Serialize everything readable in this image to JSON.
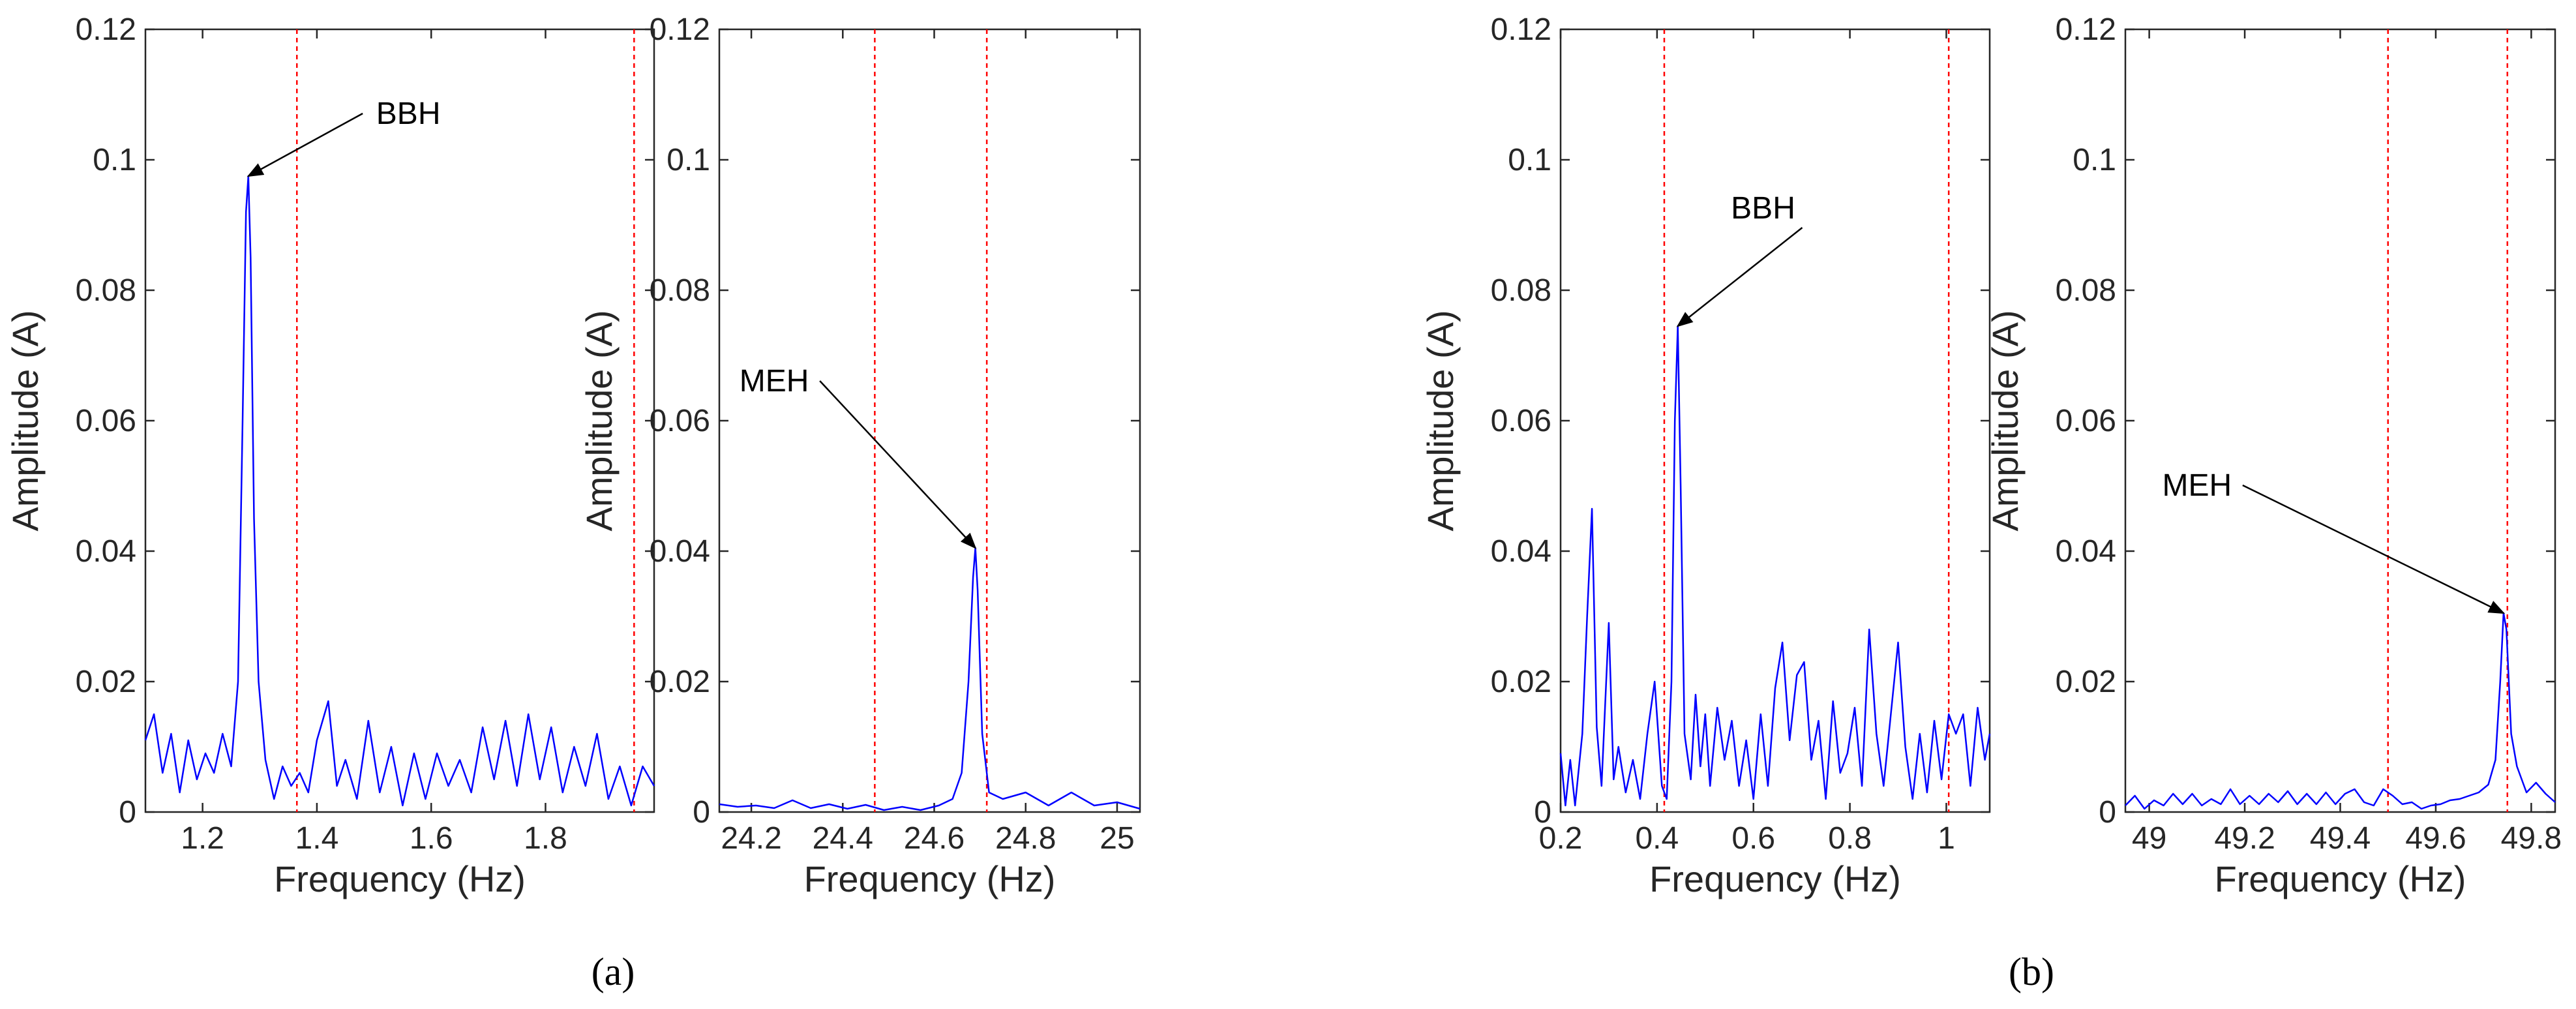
{
  "colors": {
    "signal": "#0000ff",
    "marker": "#ff0000",
    "axis": "#262626"
  },
  "subfigures": [
    {
      "label": "(a)"
    },
    {
      "label": "(b)"
    }
  ],
  "chart_data": [
    {
      "type": "line",
      "panel": "a-left",
      "xlabel": "Frequency (Hz)",
      "ylabel": "Amplitude (A)",
      "xlim": [
        1.1,
        1.99
      ],
      "ylim": [
        0,
        0.12
      ],
      "xticks": [
        1.2,
        1.4,
        1.6,
        1.8
      ],
      "xtick_labels": [
        "1.2",
        "1.4",
        "1.6",
        "1.8"
      ],
      "yticks": [
        0,
        0.02,
        0.04,
        0.06,
        0.08,
        0.1,
        0.12
      ],
      "ytick_labels": [
        "0",
        "0.02",
        "0.04",
        "0.06",
        "0.08",
        "0.1",
        "0.12"
      ],
      "vlines": [
        1.365,
        1.955
      ],
      "annotations": [
        {
          "text": "BBH",
          "x": 1.28,
          "y": 0.0975,
          "text_x": 1.56,
          "text_y": 0.1055
        }
      ],
      "x": [
        1.1,
        1.115,
        1.13,
        1.145,
        1.16,
        1.175,
        1.19,
        1.205,
        1.22,
        1.235,
        1.25,
        1.262,
        1.27,
        1.276,
        1.28,
        1.284,
        1.29,
        1.298,
        1.31,
        1.325,
        1.34,
        1.355,
        1.37,
        1.385,
        1.4,
        1.42,
        1.435,
        1.45,
        1.47,
        1.49,
        1.51,
        1.53,
        1.55,
        1.57,
        1.59,
        1.61,
        1.63,
        1.65,
        1.67,
        1.69,
        1.71,
        1.73,
        1.75,
        1.77,
        1.79,
        1.81,
        1.83,
        1.85,
        1.87,
        1.89,
        1.91,
        1.93,
        1.95,
        1.97,
        1.99
      ],
      "y": [
        0.011,
        0.015,
        0.006,
        0.012,
        0.003,
        0.011,
        0.005,
        0.009,
        0.006,
        0.012,
        0.007,
        0.02,
        0.06,
        0.092,
        0.0975,
        0.085,
        0.045,
        0.02,
        0.008,
        0.002,
        0.007,
        0.004,
        0.006,
        0.003,
        0.011,
        0.017,
        0.004,
        0.008,
        0.002,
        0.014,
        0.003,
        0.01,
        0.001,
        0.009,
        0.002,
        0.009,
        0.004,
        0.008,
        0.003,
        0.013,
        0.005,
        0.014,
        0.004,
        0.015,
        0.005,
        0.013,
        0.003,
        0.01,
        0.004,
        0.012,
        0.002,
        0.007,
        0.001,
        0.007,
        0.004
      ]
    },
    {
      "type": "line",
      "panel": "a-right",
      "xlabel": "Frequency (Hz)",
      "ylabel": "Amplitude (A)",
      "xlim": [
        24.13,
        25.05
      ],
      "ylim": [
        0,
        0.12
      ],
      "xticks": [
        24.2,
        24.4,
        24.6,
        24.8,
        25.0
      ],
      "xtick_labels": [
        "24.2",
        "24.4",
        "24.6",
        "24.8",
        "25"
      ],
      "yticks": [
        0,
        0.02,
        0.04,
        0.06,
        0.08,
        0.1,
        0.12
      ],
      "ytick_labels": [
        "0",
        "0.02",
        "0.04",
        "0.06",
        "0.08",
        "0.1",
        "0.12"
      ],
      "vlines": [
        24.47,
        24.715
      ],
      "annotations": [
        {
          "text": "MEH",
          "x": 24.69,
          "y": 0.0405,
          "text_x": 24.25,
          "text_y": 0.0645
        }
      ],
      "x": [
        24.13,
        24.17,
        24.21,
        24.25,
        24.29,
        24.33,
        24.37,
        24.41,
        24.45,
        24.49,
        24.53,
        24.57,
        24.61,
        24.64,
        24.66,
        24.675,
        24.685,
        24.69,
        24.695,
        24.705,
        24.72,
        24.75,
        24.8,
        24.85,
        24.9,
        24.95,
        25.0,
        25.05
      ],
      "y": [
        0.0012,
        0.0008,
        0.001,
        0.0006,
        0.0018,
        0.0006,
        0.0012,
        0.0005,
        0.0011,
        0.0003,
        0.0008,
        0.0003,
        0.001,
        0.002,
        0.006,
        0.02,
        0.036,
        0.0405,
        0.034,
        0.012,
        0.003,
        0.002,
        0.003,
        0.001,
        0.003,
        0.001,
        0.0015,
        0.0005
      ]
    },
    {
      "type": "line",
      "panel": "b-left",
      "xlabel": "Frequency (Hz)",
      "ylabel": "Amplitude (A)",
      "xlim": [
        0.2,
        1.09
      ],
      "ylim": [
        0,
        0.12
      ],
      "xticks": [
        0.2,
        0.4,
        0.6,
        0.8,
        1.0
      ],
      "xtick_labels": [
        "0.2",
        "0.4",
        "0.6",
        "0.8",
        "1"
      ],
      "yticks": [
        0,
        0.02,
        0.04,
        0.06,
        0.08,
        0.1,
        0.12
      ],
      "ytick_labels": [
        "0",
        "0.02",
        "0.04",
        "0.06",
        "0.08",
        "0.1",
        "0.12"
      ],
      "vlines": [
        0.415,
        1.005
      ],
      "annotations": [
        {
          "text": "BBH",
          "x": 0.443,
          "y": 0.0745,
          "text_x": 0.62,
          "text_y": 0.091
        }
      ],
      "x": [
        0.2,
        0.21,
        0.22,
        0.23,
        0.245,
        0.255,
        0.265,
        0.275,
        0.285,
        0.3,
        0.31,
        0.32,
        0.335,
        0.35,
        0.365,
        0.38,
        0.395,
        0.41,
        0.42,
        0.43,
        0.437,
        0.443,
        0.449,
        0.457,
        0.47,
        0.48,
        0.49,
        0.5,
        0.51,
        0.525,
        0.54,
        0.555,
        0.57,
        0.585,
        0.6,
        0.615,
        0.63,
        0.645,
        0.66,
        0.675,
        0.69,
        0.705,
        0.72,
        0.735,
        0.75,
        0.765,
        0.78,
        0.795,
        0.81,
        0.825,
        0.84,
        0.855,
        0.87,
        0.885,
        0.9,
        0.915,
        0.93,
        0.945,
        0.96,
        0.975,
        0.99,
        1.005,
        1.02,
        1.035,
        1.05,
        1.065,
        1.08,
        1.09
      ],
      "y": [
        0.009,
        0.001,
        0.008,
        0.001,
        0.012,
        0.03,
        0.0465,
        0.013,
        0.004,
        0.029,
        0.005,
        0.01,
        0.003,
        0.008,
        0.002,
        0.012,
        0.02,
        0.004,
        0.002,
        0.02,
        0.06,
        0.0745,
        0.05,
        0.012,
        0.005,
        0.018,
        0.007,
        0.015,
        0.004,
        0.016,
        0.008,
        0.014,
        0.004,
        0.011,
        0.002,
        0.015,
        0.004,
        0.019,
        0.026,
        0.011,
        0.021,
        0.023,
        0.008,
        0.014,
        0.002,
        0.017,
        0.006,
        0.009,
        0.016,
        0.004,
        0.028,
        0.012,
        0.004,
        0.015,
        0.026,
        0.01,
        0.002,
        0.012,
        0.003,
        0.014,
        0.005,
        0.015,
        0.012,
        0.015,
        0.004,
        0.016,
        0.008,
        0.012
      ]
    },
    {
      "type": "line",
      "panel": "b-right",
      "xlabel": "Frequency (Hz)",
      "ylabel": "Amplitude (A)",
      "xlim": [
        48.95,
        49.85
      ],
      "ylim": [
        0,
        0.12
      ],
      "xticks": [
        49.0,
        49.2,
        49.4,
        49.6,
        49.8
      ],
      "xtick_labels": [
        "49",
        "49.2",
        "49.4",
        "49.6",
        "49.8"
      ],
      "yticks": [
        0,
        0.02,
        0.04,
        0.06,
        0.08,
        0.1,
        0.12
      ],
      "ytick_labels": [
        "0",
        "0.02",
        "0.04",
        "0.06",
        "0.08",
        "0.1",
        "0.12"
      ],
      "vlines": [
        49.5,
        49.75
      ],
      "annotations": [
        {
          "text": "MEH",
          "x": 49.742,
          "y": 0.0305,
          "text_x": 49.1,
          "text_y": 0.0485
        }
      ],
      "x": [
        48.95,
        48.97,
        48.99,
        49.01,
        49.03,
        49.05,
        49.07,
        49.09,
        49.11,
        49.13,
        49.15,
        49.17,
        49.19,
        49.21,
        49.23,
        49.25,
        49.27,
        49.29,
        49.31,
        49.33,
        49.35,
        49.37,
        49.39,
        49.41,
        49.43,
        49.45,
        49.47,
        49.49,
        49.51,
        49.53,
        49.55,
        49.57,
        49.59,
        49.61,
        49.63,
        49.65,
        49.67,
        49.69,
        49.71,
        49.725,
        49.735,
        49.742,
        49.748,
        49.758,
        49.77,
        49.79,
        49.81,
        49.83,
        49.85
      ],
      "y": [
        0.001,
        0.0025,
        0.0005,
        0.0018,
        0.001,
        0.0028,
        0.0012,
        0.0028,
        0.001,
        0.002,
        0.0012,
        0.0035,
        0.0012,
        0.0025,
        0.0012,
        0.0028,
        0.0015,
        0.0032,
        0.0012,
        0.0028,
        0.0012,
        0.003,
        0.0012,
        0.0028,
        0.0035,
        0.0015,
        0.001,
        0.0035,
        0.0025,
        0.0012,
        0.0015,
        0.0005,
        0.001,
        0.0012,
        0.0018,
        0.002,
        0.0025,
        0.003,
        0.0042,
        0.008,
        0.02,
        0.0305,
        0.028,
        0.012,
        0.007,
        0.003,
        0.0045,
        0.0028,
        0.0015
      ]
    }
  ]
}
